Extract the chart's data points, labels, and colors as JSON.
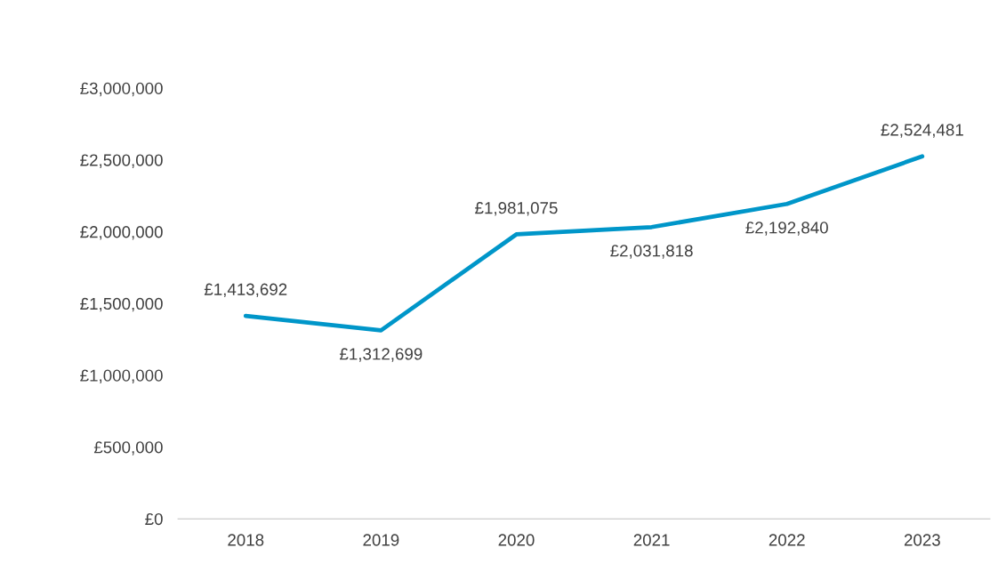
{
  "chart_data": {
    "type": "line",
    "categories": [
      "2018",
      "2019",
      "2020",
      "2021",
      "2022",
      "2023"
    ],
    "series": [
      {
        "color": "#0096c9",
        "values": [
          1413692,
          1312699,
          1981075,
          2031818,
          2192840,
          2524481
        ],
        "value_labels": [
          "£1,413,692",
          "£1,312,699",
          "£1,981,075",
          "£2,031,818",
          "£2,192,840",
          "£2,524,481"
        ]
      }
    ],
    "ylim": [
      0,
      3000000
    ],
    "yticks": [
      {
        "value": 0,
        "label": "£0"
      },
      {
        "value": 500000,
        "label": "£500,000"
      },
      {
        "value": 1000000,
        "label": "£1,000,000"
      },
      {
        "value": 1500000,
        "label": "£1,500,000"
      },
      {
        "value": 2000000,
        "label": "£2,000,000"
      },
      {
        "value": 2500000,
        "label": "£2,500,000"
      },
      {
        "value": 3000000,
        "label": "£3,000,000"
      }
    ],
    "grid": false,
    "legend": false,
    "marker": "none",
    "line_style": "solid"
  }
}
